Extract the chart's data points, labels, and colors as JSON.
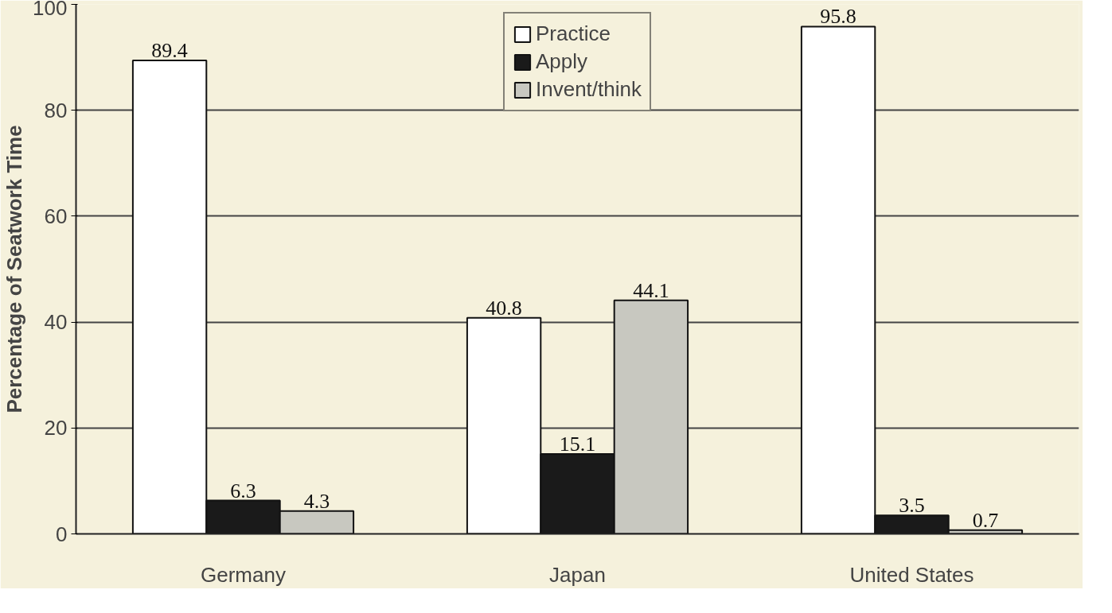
{
  "chart_data": {
    "type": "bar",
    "ylabel": "Percentage of Seatwork Time",
    "categories": [
      "Germany",
      "Japan",
      "United States"
    ],
    "series": [
      {
        "name": "Practice",
        "color": "#ffffff",
        "values": [
          89.4,
          40.8,
          95.8
        ]
      },
      {
        "name": "Apply",
        "color": "#1a1a1a",
        "values": [
          6.3,
          15.1,
          3.5
        ]
      },
      {
        "name": "Invent/think",
        "color": "#c8c8c0",
        "values": [
          4.3,
          44.1,
          0.7
        ]
      }
    ],
    "ylim": [
      0,
      100
    ],
    "yticks": [
      0,
      20,
      40,
      60,
      80,
      100
    ],
    "grid": "y",
    "legend": "top",
    "data_labels": true
  }
}
